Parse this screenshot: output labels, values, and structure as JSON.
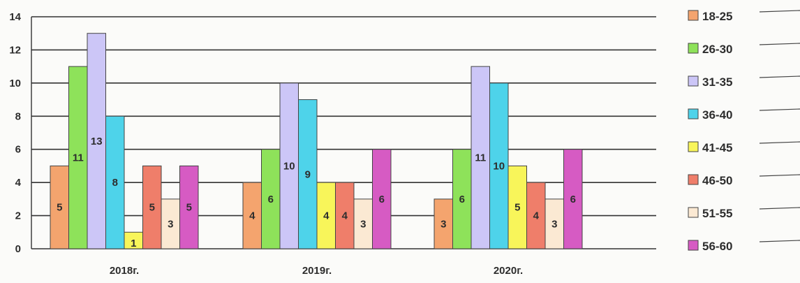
{
  "chart_data": {
    "type": "bar",
    "categories": [
      "2018г.",
      "2019г.",
      "2020г."
    ],
    "ylim": [
      0,
      14
    ],
    "yticks": [
      0,
      2,
      4,
      6,
      8,
      10,
      12,
      14
    ],
    "grid": true,
    "legend_position": "right",
    "series": [
      {
        "name": "18-25",
        "values": [
          5,
          4,
          3
        ],
        "color": "#f4a46e"
      },
      {
        "name": "26-30",
        "values": [
          11,
          6,
          6
        ],
        "color": "#8ee25a"
      },
      {
        "name": "31-35",
        "values": [
          13,
          10,
          11
        ],
        "color": "#ccc6f7"
      },
      {
        "name": "36-40",
        "values": [
          8,
          9,
          10
        ],
        "color": "#4ed3ea"
      },
      {
        "name": "41-45",
        "values": [
          1,
          4,
          5
        ],
        "color": "#f8f55a"
      },
      {
        "name": "46-50",
        "values": [
          5,
          4,
          4
        ],
        "color": "#ef7e6a"
      },
      {
        "name": "51-55",
        "values": [
          3,
          3,
          3
        ],
        "color": "#fbe9d3"
      },
      {
        "name": "56-60",
        "values": [
          5,
          6,
          6
        ],
        "color": "#d65bc3"
      }
    ]
  }
}
